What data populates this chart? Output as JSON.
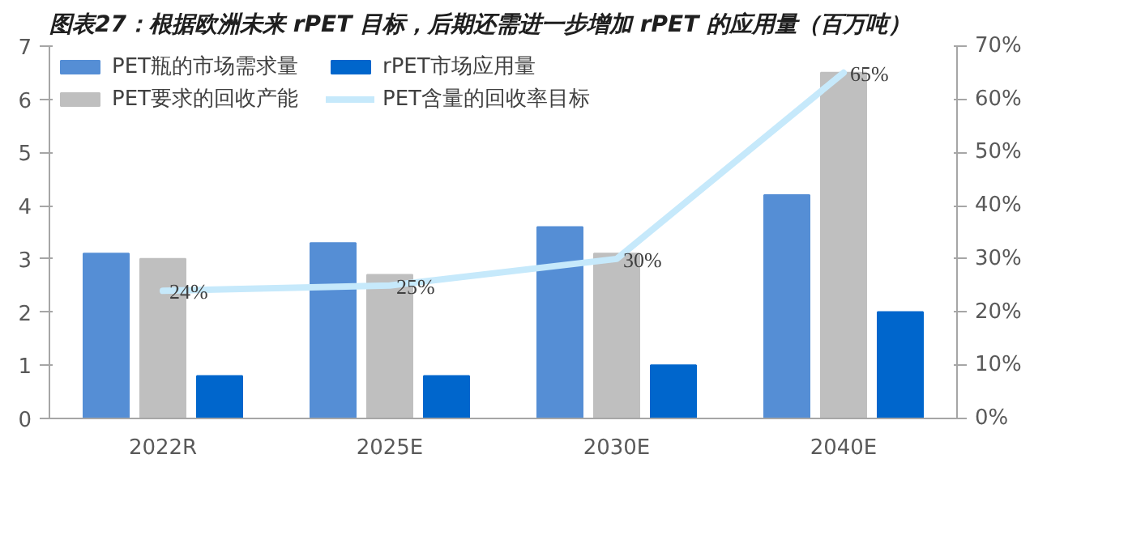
{
  "chart_data": {
    "type": "bar",
    "title": "图表27：根据欧洲未来 rPET 目标，后期还需进一步增加 rPET 的应用量（百万吨）",
    "categories": [
      "2022R",
      "2025E",
      "2030E",
      "2040E"
    ],
    "series": [
      {
        "name": "PET瓶的市场需求量",
        "color": "#558ed5",
        "values": [
          3.1,
          3.3,
          3.6,
          4.2
        ]
      },
      {
        "name": "PET要求的回收产能",
        "color": "#bfbfbf",
        "values": [
          3.0,
          2.7,
          3.1,
          6.5
        ]
      },
      {
        "name": "rPET市场应用量",
        "color": "#0066cc",
        "values": [
          0.8,
          0.8,
          1.0,
          2.0
        ]
      },
      {
        "name": "PET含量的回收率目标",
        "color": "#c6e9fb",
        "type": "line",
        "axis": "y2",
        "values": [
          24,
          25,
          30,
          65
        ],
        "value_labels": [
          "24%",
          "25%",
          "30%",
          "65%"
        ]
      }
    ],
    "ylim": [
      0,
      7
    ],
    "yticks": [
      0,
      1,
      2,
      3,
      4,
      5,
      6,
      7
    ],
    "y2lim": [
      0,
      70
    ],
    "y2ticks": [
      {
        "value": 0,
        "label": "0%"
      },
      {
        "value": 10,
        "label": "10%"
      },
      {
        "value": 20,
        "label": "20%"
      },
      {
        "value": 30,
        "label": "30%"
      },
      {
        "value": 40,
        "label": "40%"
      },
      {
        "value": 50,
        "label": "50%"
      },
      {
        "value": 60,
        "label": "60%"
      },
      {
        "value": 70,
        "label": "70%"
      }
    ],
    "grid": false,
    "marker": "none",
    "legend": "top"
  }
}
